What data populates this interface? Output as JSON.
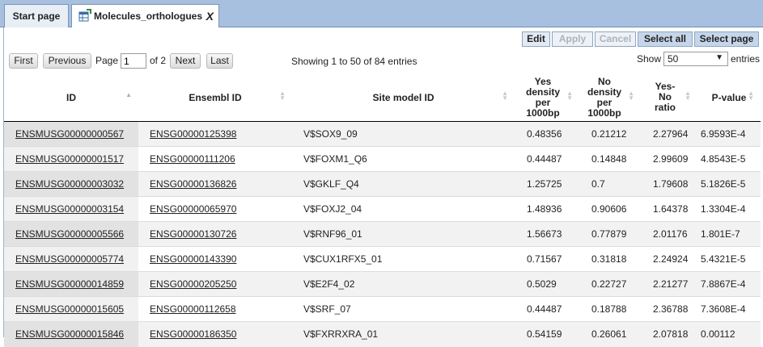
{
  "tabs": [
    {
      "label": "Start page"
    },
    {
      "label": "Molecules_orthologues",
      "close": "X"
    }
  ],
  "toolbar": {
    "edit": "Edit",
    "apply": "Apply",
    "cancel": "Cancel",
    "select_all": "Select all",
    "select_page": "Select page"
  },
  "pager": {
    "first": "First",
    "previous": "Previous",
    "page_label": "Page",
    "page_value": "1",
    "of_label": "of 2",
    "next": "Next",
    "last": "Last"
  },
  "info": "Showing 1 to 50 of 84 entries",
  "length": {
    "show_label": "Show",
    "selected": "50",
    "entries_label": "entries"
  },
  "columns": [
    {
      "label": "ID"
    },
    {
      "label": "Ensembl ID"
    },
    {
      "label": "Site model ID"
    },
    {
      "label": "Yes density per 1000bp"
    },
    {
      "label": "No density per 1000bp"
    },
    {
      "label": "Yes-No ratio"
    },
    {
      "label": "P-value"
    }
  ],
  "rows": [
    {
      "id": "ENSMUSG00000000567",
      "ensembl": "ENSG00000125398",
      "site": "V$SOX9_09",
      "yes": "0.48356",
      "no": "0.21212",
      "ratio": "2.27964",
      "pvalue": "6.9593E-4"
    },
    {
      "id": "ENSMUSG00000001517",
      "ensembl": "ENSG00000111206",
      "site": "V$FOXM1_Q6",
      "yes": "0.44487",
      "no": "0.14848",
      "ratio": "2.99609",
      "pvalue": "4.8543E-5"
    },
    {
      "id": "ENSMUSG00000003032",
      "ensembl": "ENSG00000136826",
      "site": "V$GKLF_Q4",
      "yes": "1.25725",
      "no": "0.7",
      "ratio": "1.79608",
      "pvalue": "5.1826E-5"
    },
    {
      "id": "ENSMUSG00000003154",
      "ensembl": "ENSG00000065970",
      "site": "V$FOXJ2_04",
      "yes": "1.48936",
      "no": "0.90606",
      "ratio": "1.64378",
      "pvalue": "1.3304E-4"
    },
    {
      "id": "ENSMUSG00000005566",
      "ensembl": "ENSG00000130726",
      "site": "V$RNF96_01",
      "yes": "1.56673",
      "no": "0.77879",
      "ratio": "2.01176",
      "pvalue": "1.801E-7"
    },
    {
      "id": "ENSMUSG00000005774",
      "ensembl": "ENSG00000143390",
      "site": "V$CUX1RFX5_01",
      "yes": "0.71567",
      "no": "0.31818",
      "ratio": "2.24924",
      "pvalue": "5.4321E-5"
    },
    {
      "id": "ENSMUSG00000014859",
      "ensembl": "ENSG00000205250",
      "site": "V$E2F4_02",
      "yes": "0.5029",
      "no": "0.22727",
      "ratio": "2.21277",
      "pvalue": "7.8867E-4"
    },
    {
      "id": "ENSMUSG00000015605",
      "ensembl": "ENSG00000112658",
      "site": "V$SRF_07",
      "yes": "0.44487",
      "no": "0.18788",
      "ratio": "2.36788",
      "pvalue": "7.3608E-4"
    },
    {
      "id": "ENSMUSG00000015846",
      "ensembl": "ENSG00000186350",
      "site": "V$FXRRXRA_01",
      "yes": "0.54159",
      "no": "0.26061",
      "ratio": "2.07818",
      "pvalue": "0.00112"
    }
  ]
}
